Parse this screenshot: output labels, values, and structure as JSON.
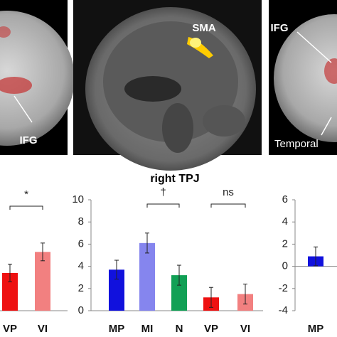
{
  "panels": [
    {
      "labels": [
        "IFG"
      ]
    },
    {
      "labels": [
        "SMA"
      ]
    },
    {
      "labels": [
        "IFG",
        "Temporal"
      ]
    }
  ],
  "chart_data": [
    {
      "type": "bar",
      "categories": [
        "VP",
        "VI"
      ],
      "values": [
        3.4,
        5.3
      ],
      "errors": [
        0.8,
        0.8
      ],
      "colors": [
        "#ee1111",
        "#f28080"
      ],
      "ylim": [
        0,
        10
      ],
      "annotations": [
        "*"
      ]
    },
    {
      "type": "bar",
      "title": "right TPJ",
      "categories": [
        "MP",
        "MI",
        "N",
        "VP",
        "VI"
      ],
      "values": [
        3.7,
        6.1,
        3.2,
        1.2,
        1.5
      ],
      "errors": [
        0.85,
        0.9,
        0.9,
        0.9,
        0.9
      ],
      "colors": [
        "#1111dd",
        "#8585ee",
        "#11a055",
        "#ee1111",
        "#f28080"
      ],
      "ylim": [
        0,
        10
      ],
      "yticks": [
        0,
        2,
        4,
        6,
        8,
        10
      ],
      "annotations": [
        "†",
        "ns"
      ]
    },
    {
      "type": "bar",
      "categories": [
        "MP"
      ],
      "values": [
        0.9
      ],
      "errors": [
        0.85
      ],
      "colors": [
        "#1111dd"
      ],
      "ylim": [
        -4,
        6
      ],
      "yticks": [
        -4,
        -2,
        0,
        2,
        4,
        6
      ]
    }
  ]
}
